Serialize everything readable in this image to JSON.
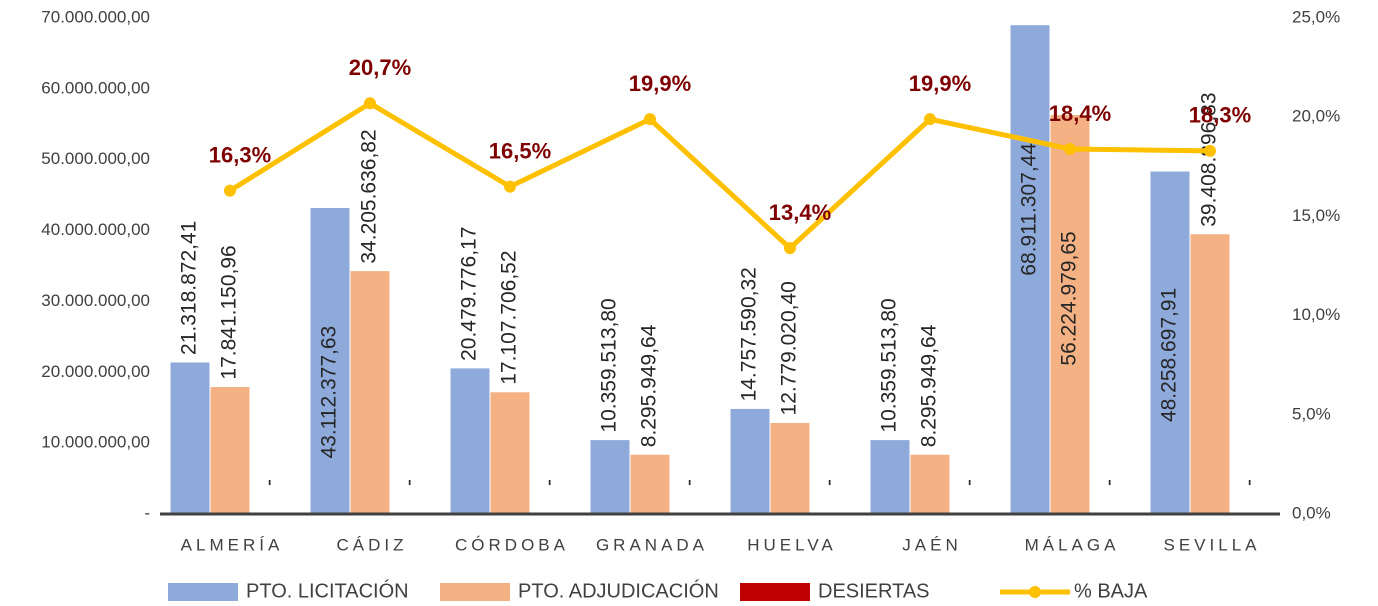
{
  "chart_data": {
    "type": "bar",
    "categories": [
      "ALMERÍA",
      "CÁDIZ",
      "CÓRDOBA",
      "GRANADA",
      "HUELVA",
      "JAÉN",
      "MÁLAGA",
      "SEVILLA"
    ],
    "series": [
      {
        "name": "PTO. LICITACIÓN",
        "type": "bar",
        "color": "#8eaadb",
        "values": [
          21318872.41,
          43112377.63,
          20479776.17,
          10359513.8,
          14757590.32,
          10359513.8,
          68911307.44,
          48258697.91
        ],
        "value_labels": [
          "21.318.872,41",
          "43.112.377,63",
          "20.479.776,17",
          "10.359.513,80",
          "14.757.590,32",
          "10.359.513,80",
          "68.911.307,44",
          "48.258.697,91"
        ]
      },
      {
        "name": "PTO. ADJUDICACIÓN",
        "type": "bar",
        "color": "#f4b183",
        "values": [
          17841150.96,
          34205636.82,
          17107706.52,
          8295949.64,
          12779020.4,
          8295949.64,
          56224979.65,
          39408896.83
        ],
        "value_labels": [
          "17.841.150,96",
          "34.205.636,82",
          "17.107.706,52",
          "8.295.949,64",
          "12.779.020,40",
          "8.295.949,64",
          "56.224.979,65",
          "39.408.896,83"
        ]
      },
      {
        "name": "DESIERTAS",
        "type": "bar",
        "color": "#c00000",
        "values": [
          0,
          0,
          0,
          0,
          0,
          0,
          0,
          0
        ],
        "value_labels": [
          "-",
          "-",
          "-",
          "-",
          "-",
          "-",
          "-",
          "-"
        ]
      },
      {
        "name": "% BAJA",
        "type": "line",
        "axis": "y2",
        "color": "#ffc000",
        "values": [
          16.3,
          20.7,
          16.5,
          19.9,
          13.4,
          19.9,
          18.4,
          18.3
        ],
        "value_labels": [
          "16,3%",
          "20,7%",
          "16,5%",
          "19,9%",
          "13,4%",
          "19,9%",
          "18,4%",
          "18,3%"
        ]
      }
    ],
    "ylim": [
      0,
      70000000
    ],
    "yticks": [
      {
        "value": 0,
        "label": "-"
      },
      {
        "value": 10000000,
        "label": "10.000.000,00"
      },
      {
        "value": 20000000,
        "label": "20.000.000,00"
      },
      {
        "value": 30000000,
        "label": "30.000.000,00"
      },
      {
        "value": 40000000,
        "label": "40.000.000,00"
      },
      {
        "value": 50000000,
        "label": "50.000.000,00"
      },
      {
        "value": 60000000,
        "label": "60.000.000,00"
      },
      {
        "value": 70000000,
        "label": "70.000.000,00"
      }
    ],
    "y2lim": [
      0,
      25
    ],
    "y2ticks": [
      {
        "value": 0,
        "label": "0,0%"
      },
      {
        "value": 5,
        "label": "5,0%"
      },
      {
        "value": 10,
        "label": "10,0%"
      },
      {
        "value": 15,
        "label": "15,0%"
      },
      {
        "value": 20,
        "label": "20,0%"
      },
      {
        "value": 25,
        "label": "25,0%"
      }
    ],
    "legend": "bottom"
  }
}
